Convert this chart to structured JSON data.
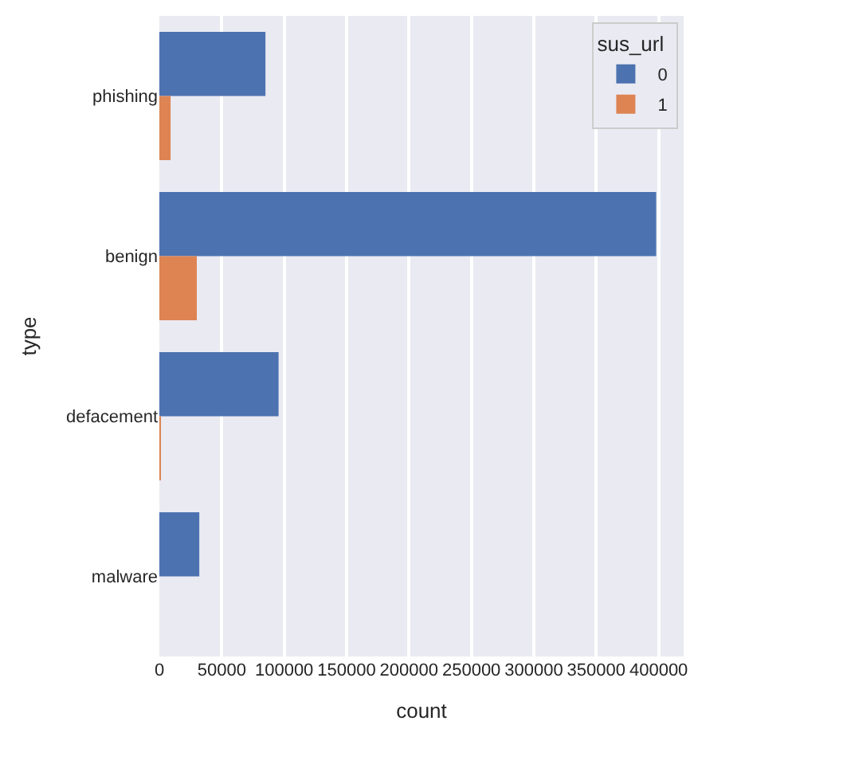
{
  "chart_data": {
    "type": "bar",
    "orientation": "horizontal",
    "xlabel": "count",
    "ylabel": "type",
    "legend_title": "sus_url",
    "categories": [
      "phishing",
      "benign",
      "defacement",
      "malware"
    ],
    "series": [
      {
        "name": "0",
        "color": "#4c72b0",
        "values": [
          85000,
          398000,
          95500,
          32000
        ]
      },
      {
        "name": "1",
        "color": "#dd8452",
        "values": [
          9000,
          30000,
          1000,
          0
        ]
      }
    ],
    "xlim": [
      0,
      420000
    ],
    "xticks": [
      0,
      50000,
      100000,
      150000,
      200000,
      250000,
      300000,
      350000,
      400000
    ],
    "grid": "x",
    "legend": "top right"
  }
}
